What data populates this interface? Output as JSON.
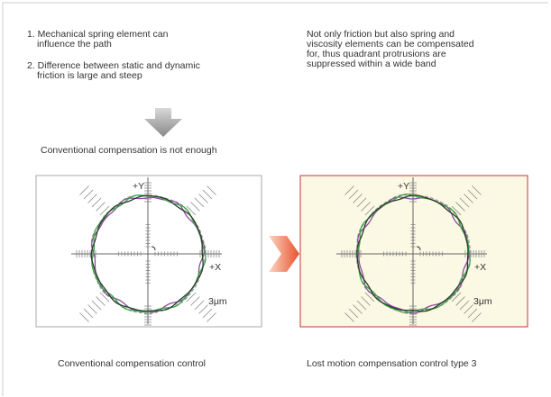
{
  "left": {
    "items": [
      [
        "1. Mechanical spring element can",
        "influence the path"
      ],
      [
        "2. Difference between static and dynamic",
        "friction is large and steep"
      ]
    ],
    "conclusion": "Conventional compensation is not enough",
    "plot": {
      "y_label": "+Y",
      "x_label": "+X",
      "scale": "3μm"
    },
    "caption": "Conventional compensation control"
  },
  "right": {
    "text": [
      "Not only friction but also spring and",
      "viscosity elements can be compensated",
      "for, thus quadrant protrusions are",
      "suppressed within a wide band"
    ],
    "plot": {
      "y_label": "+Y",
      "x_label": "+X",
      "scale": "3μm"
    },
    "caption": "Lost motion compensation control type 3"
  }
}
